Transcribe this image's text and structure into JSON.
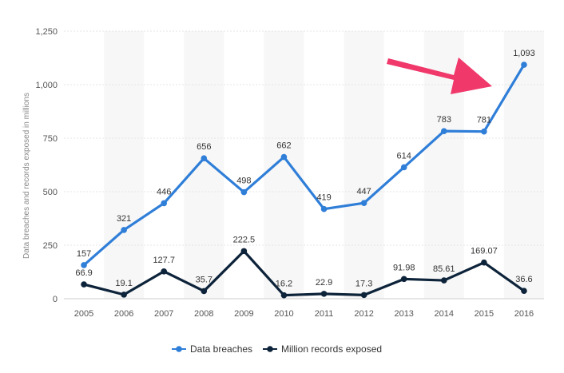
{
  "chart_data": {
    "type": "line",
    "x": [
      "2005",
      "2006",
      "2007",
      "2008",
      "2009",
      "2010",
      "2011",
      "2012",
      "2013",
      "2014",
      "2015",
      "2016"
    ],
    "series": [
      {
        "name": "Data breaches",
        "color": "#2f7ed8",
        "values": [
          157,
          321,
          446,
          656,
          498,
          662,
          419,
          447,
          614,
          783,
          781,
          1093
        ],
        "labels": [
          "157",
          "321",
          "446",
          "656",
          "498",
          "662",
          "419",
          "447",
          "614",
          "783",
          "781",
          "1,093"
        ]
      },
      {
        "name": "Million records exposed",
        "color": "#0d233a",
        "values": [
          66.9,
          19.1,
          127.7,
          35.7,
          222.5,
          16.2,
          22.9,
          17.3,
          91.98,
          85.61,
          169.07,
          36.6
        ],
        "labels": [
          "66.9",
          "19.1",
          "127.7",
          "35.7",
          "222.5",
          "16.2",
          "22.9",
          "17.3",
          "91.98",
          "85.61",
          "169.07",
          "36.6"
        ]
      }
    ],
    "ylabel": "Data breaches and records exposed in millions",
    "ylim": [
      0,
      1250
    ],
    "yticks": [
      0,
      250,
      500,
      750,
      1000,
      1250
    ],
    "ytick_labels": [
      "0",
      "250",
      "500",
      "750",
      "1,000",
      "1,250"
    ],
    "grid": true,
    "legend_position": "bottom-center",
    "annotation": {
      "type": "arrow",
      "color": "#f0386b",
      "points_to": "2016"
    }
  }
}
